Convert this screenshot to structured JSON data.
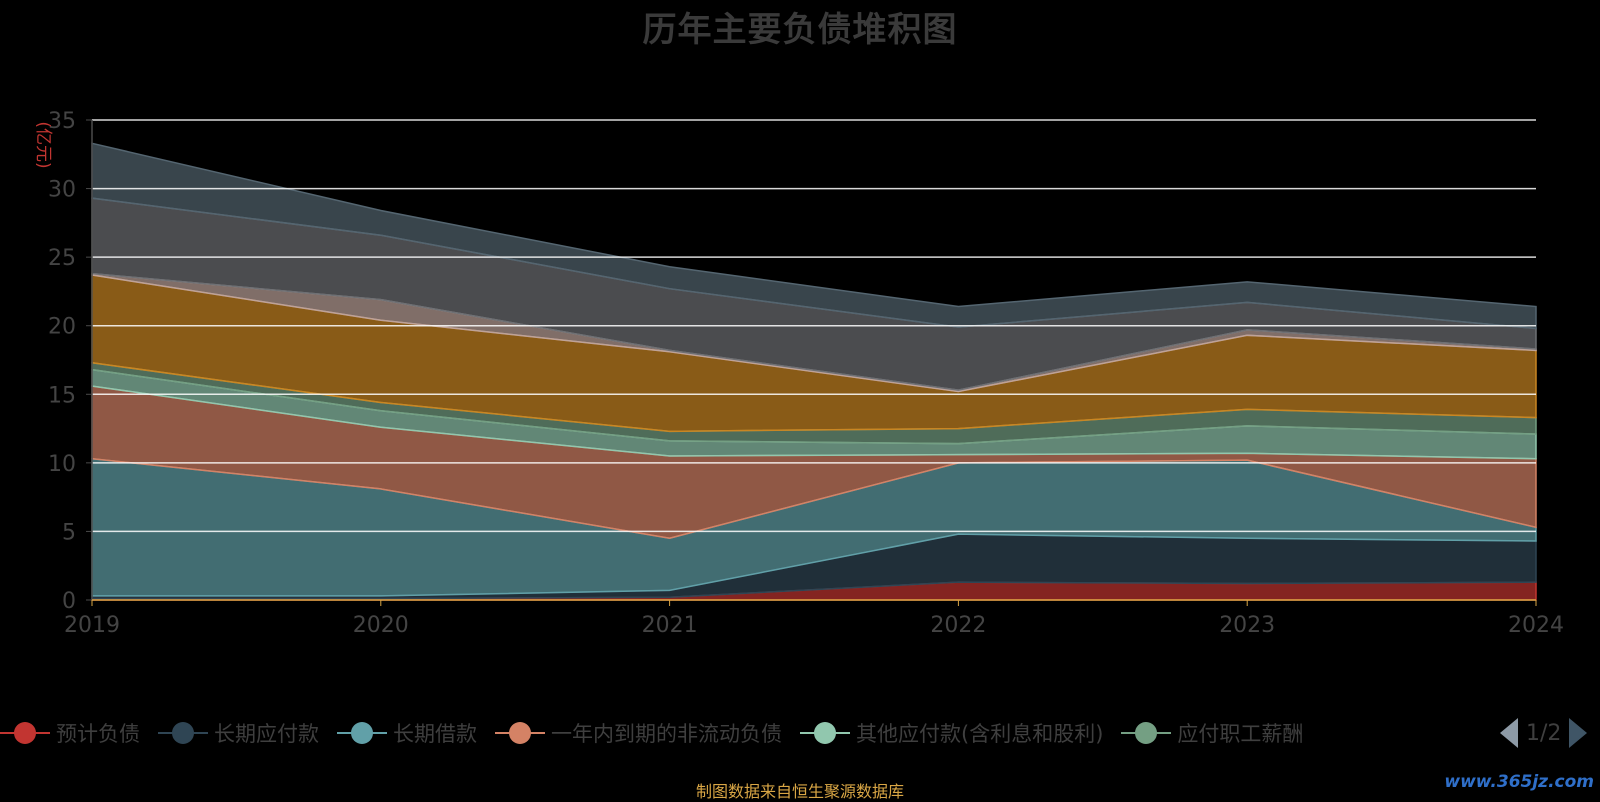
{
  "chart_data": {
    "type": "area",
    "title": "历年主要负债堆积图",
    "ylabel": "(亿元)",
    "x": [
      "2019",
      "2020",
      "2021",
      "2022",
      "2023",
      "2024"
    ],
    "ylim": [
      0,
      35
    ],
    "yticks": [
      0,
      5,
      10,
      15,
      20,
      25,
      30,
      35
    ],
    "stacked": true,
    "grid": true,
    "legend_position": "bottom",
    "series": [
      {
        "name": "预计负债",
        "color": "#c23531",
        "values": [
          0.1,
          0.1,
          0.2,
          1.3,
          1.2,
          1.3
        ]
      },
      {
        "name": "长期应付款",
        "color": "#2f4554",
        "values": [
          0.2,
          0.2,
          0.5,
          3.5,
          3.3,
          3.0
        ]
      },
      {
        "name": "长期借款",
        "color": "#61a0a8",
        "values": [
          10.0,
          7.8,
          3.8,
          5.2,
          5.7,
          1.0
        ]
      },
      {
        "name": "一年内到期的非流动负债",
        "color": "#d48265",
        "values": [
          5.3,
          4.5,
          6.0,
          0.6,
          0.5,
          5.0
        ]
      },
      {
        "name": "其他应付款(含利息和股利)",
        "color": "#91c7ae",
        "values": [
          1.2,
          1.2,
          1.1,
          0.8,
          2.0,
          1.8
        ]
      },
      {
        "name": "应付职工薪酬",
        "color": "#749f83",
        "values": [
          0.5,
          0.6,
          0.7,
          1.1,
          1.2,
          1.2
        ]
      },
      {
        "name": "",
        "color": "#ca8622",
        "values": [
          6.4,
          6.0,
          5.8,
          2.7,
          5.4,
          4.9
        ]
      },
      {
        "name": "",
        "color": "#bda29a",
        "values": [
          0.1,
          1.5,
          0.1,
          0.1,
          0.4,
          0.1
        ]
      },
      {
        "name": "",
        "color": "#6e7074",
        "values": [
          5.5,
          4.7,
          4.5,
          4.6,
          2.0,
          1.5
        ]
      },
      {
        "name": "",
        "color": "#546570",
        "values": [
          4.0,
          1.8,
          1.6,
          1.5,
          1.5,
          1.6
        ]
      }
    ]
  },
  "legend_pager": {
    "text": "1/2"
  },
  "source_note": "制图数据来自恒生聚源数据库",
  "watermark": "www.365jz.com"
}
